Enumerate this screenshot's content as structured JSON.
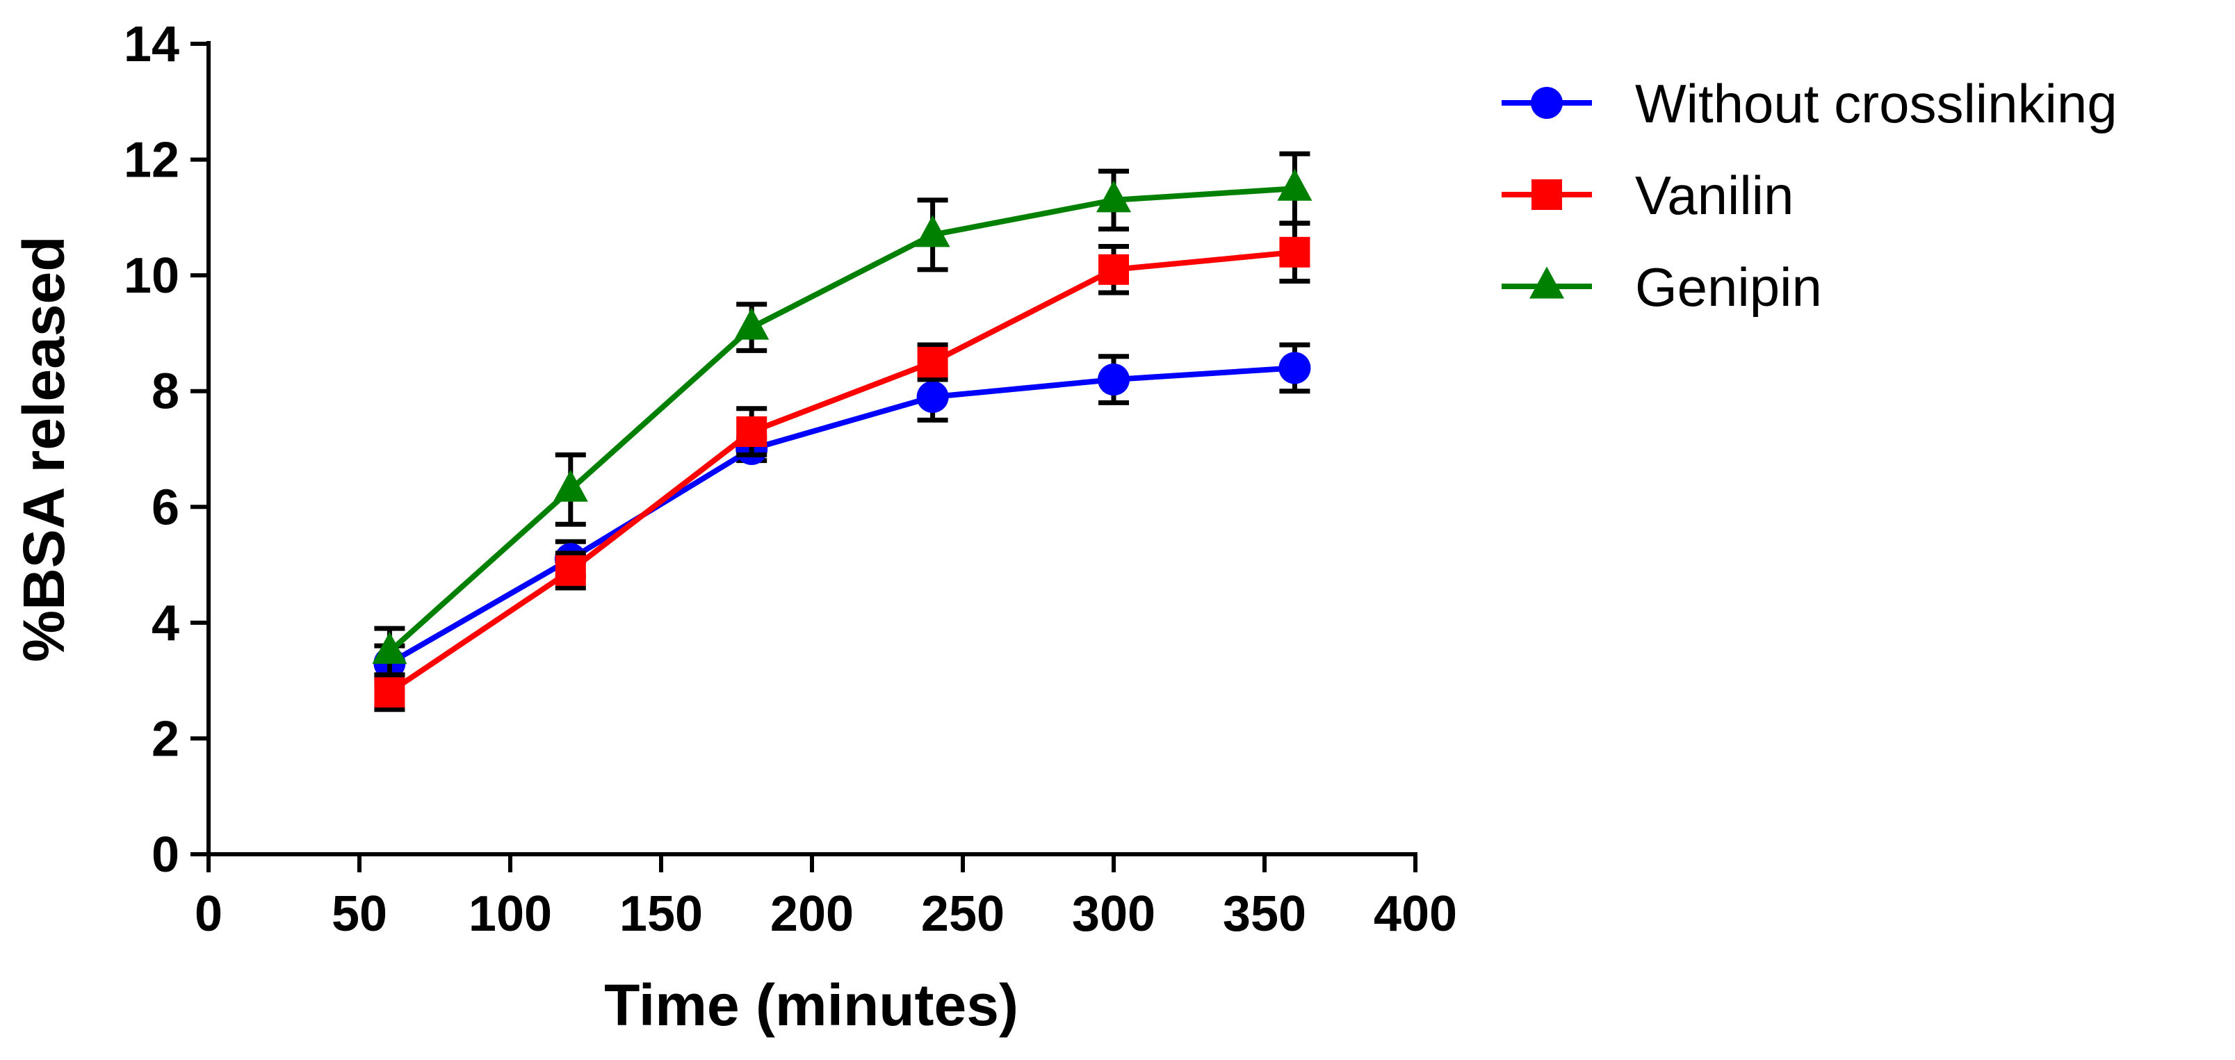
{
  "chart_data": {
    "type": "line",
    "title": "",
    "xlabel": "Time (minutes)",
    "ylabel": "%BSA released",
    "xlim": [
      0,
      400
    ],
    "ylim": [
      0,
      14
    ],
    "xticks": [
      0,
      50,
      100,
      150,
      200,
      250,
      300,
      350,
      400
    ],
    "yticks": [
      0,
      2,
      4,
      6,
      8,
      10,
      12,
      14
    ],
    "grid": false,
    "legend_position": "top-right",
    "x": [
      60,
      120,
      180,
      240,
      300,
      360
    ],
    "series": [
      {
        "name": "Without crosslinking",
        "color": "#0000ff",
        "marker": "circle",
        "values": [
          3.3,
          5.1,
          7.0,
          7.9,
          8.2,
          8.4
        ],
        "errors": [
          0.3,
          0.3,
          0.2,
          0.4,
          0.4,
          0.4
        ]
      },
      {
        "name": "Vanilin",
        "color": "#ff0000",
        "marker": "square",
        "values": [
          2.8,
          4.9,
          7.3,
          8.5,
          10.1,
          10.4
        ],
        "errors": [
          0.3,
          0.3,
          0.4,
          0.3,
          0.4,
          0.5
        ]
      },
      {
        "name": "Genipin",
        "color": "#008000",
        "marker": "triangle",
        "values": [
          3.5,
          6.3,
          9.1,
          10.7,
          11.3,
          11.5
        ],
        "errors": [
          0.4,
          0.6,
          0.4,
          0.6,
          0.5,
          0.6
        ]
      }
    ]
  }
}
